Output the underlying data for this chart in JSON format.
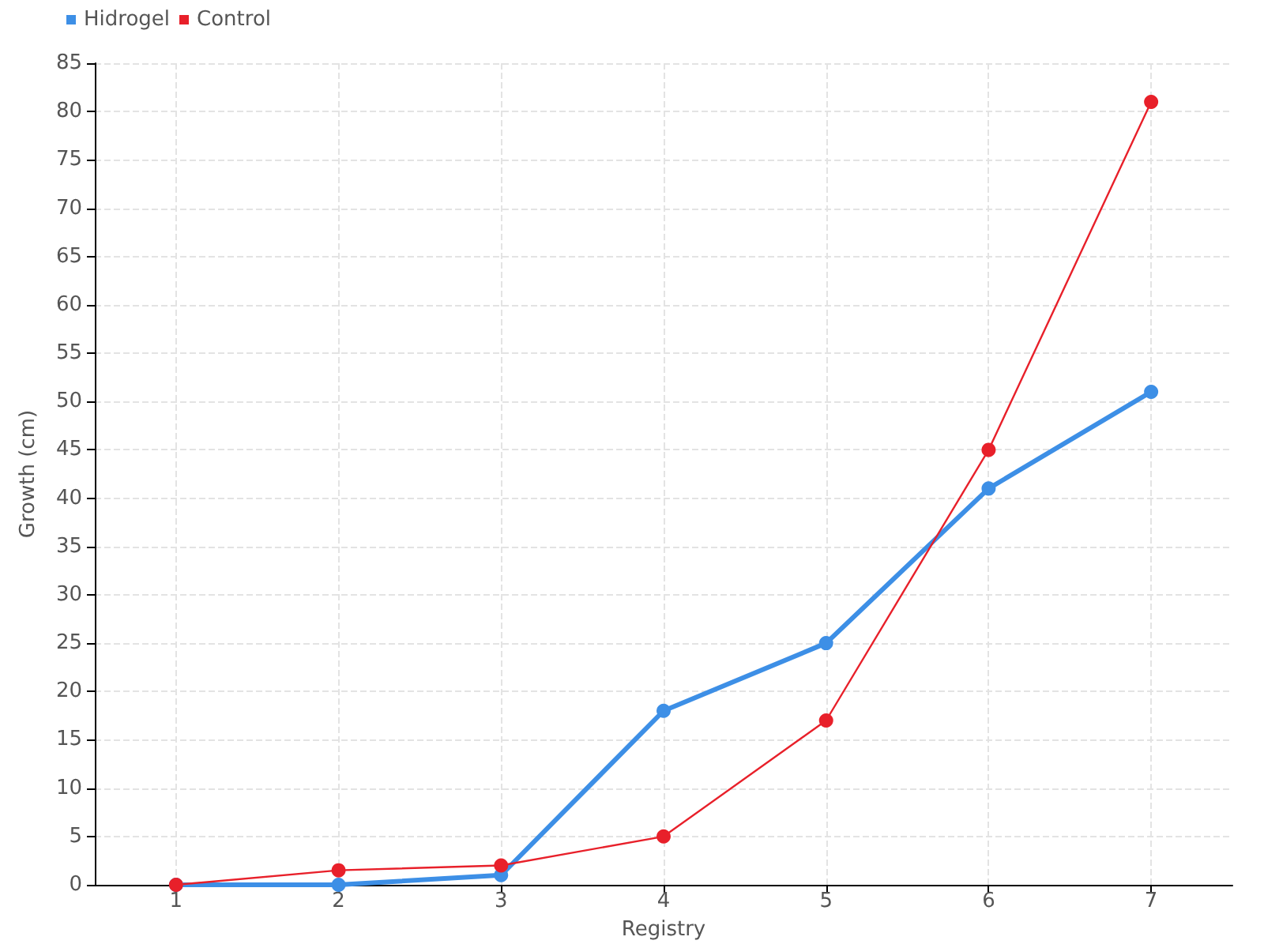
{
  "chart_data": {
    "type": "line",
    "xlabel": "Registry",
    "ylabel": "Growth (cm)",
    "x": [
      1,
      2,
      3,
      4,
      5,
      6,
      7
    ],
    "xlim": [
      0.5,
      7.5
    ],
    "xticks": [
      1,
      2,
      3,
      4,
      5,
      6,
      7
    ],
    "ylim": [
      0,
      85
    ],
    "yticks": [
      0,
      5,
      10,
      15,
      20,
      25,
      30,
      35,
      40,
      45,
      50,
      55,
      60,
      65,
      70,
      75,
      80,
      85
    ],
    "series": [
      {
        "name": "Hidrogel",
        "color": "#3d8fe6",
        "values": [
          0,
          0,
          1,
          18,
          25,
          41,
          51
        ]
      },
      {
        "name": "Control",
        "color": "#e8202a",
        "values": [
          0,
          1.5,
          2,
          5,
          17,
          45,
          81
        ]
      }
    ],
    "grid": true,
    "legend": "top left",
    "marker": "circle",
    "line_style": "solid"
  }
}
